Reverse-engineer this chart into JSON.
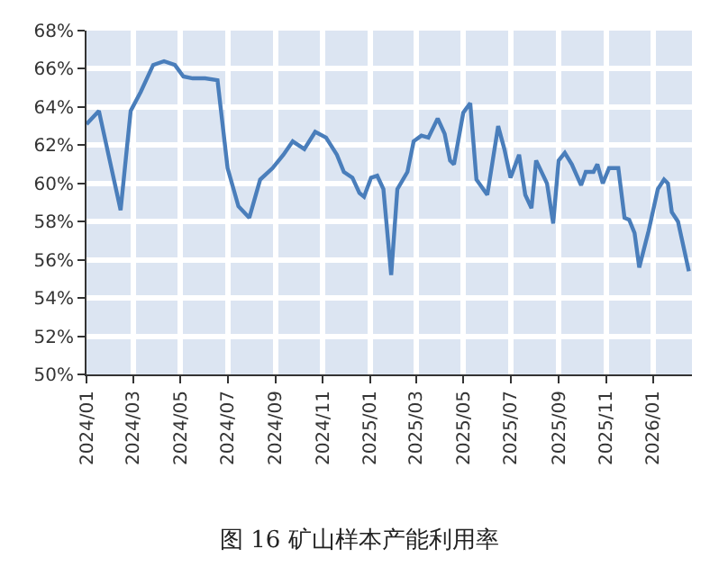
{
  "chart_data": {
    "type": "line",
    "title": "图 16 矿山样本产能利用率",
    "x": [
      "2024-01-01",
      "2024-01-17",
      "2024-02-14",
      "2024-02-27",
      "2024-03-11",
      "2024-03-27",
      "2024-04-10",
      "2024-04-24",
      "2024-05-05",
      "2024-05-17",
      "2024-06-02",
      "2024-06-18",
      "2024-07-01",
      "2024-07-15",
      "2024-07-29",
      "2024-08-12",
      "2024-08-28",
      "2024-09-11",
      "2024-09-23",
      "2024-10-08",
      "2024-10-22",
      "2024-11-05",
      "2024-11-19",
      "2024-11-28",
      "2024-12-09",
      "2024-12-18",
      "2024-12-24",
      "2025-01-02",
      "2025-01-10",
      "2025-01-18",
      "2025-01-28",
      "2025-02-05",
      "2025-02-18",
      "2025-02-26",
      "2025-03-08",
      "2025-03-17",
      "2025-03-29",
      "2025-04-07",
      "2025-04-14",
      "2025-04-19",
      "2025-05-01",
      "2025-05-10",
      "2025-05-18",
      "2025-06-01",
      "2025-06-15",
      "2025-06-23",
      "2025-07-01",
      "2025-07-12",
      "2025-07-20",
      "2025-07-28",
      "2025-08-03",
      "2025-08-17",
      "2025-08-25",
      "2025-09-01",
      "2025-09-09",
      "2025-09-18",
      "2025-09-30",
      "2025-10-06",
      "2025-10-16",
      "2025-10-21",
      "2025-10-28",
      "2025-11-05",
      "2025-11-17",
      "2025-11-25",
      "2025-12-01",
      "2025-12-08",
      "2025-12-14",
      "2025-12-26",
      "2026-01-07",
      "2026-01-15",
      "2026-01-20",
      "2026-01-25",
      "2026-02-02",
      "2026-02-16"
    ],
    "series": [
      {
        "color": "#4a7ebb",
        "values": [
          63.1,
          63.8,
          58.6,
          63.8,
          64.8,
          66.2,
          66.4,
          66.2,
          65.6,
          65.5,
          65.5,
          65.4,
          60.8,
          58.8,
          58.2,
          60.2,
          60.8,
          61.5,
          62.2,
          61.8,
          62.7,
          62.4,
          61.5,
          60.6,
          60.3,
          59.5,
          59.3,
          60.3,
          60.4,
          59.7,
          55.2,
          59.7,
          60.6,
          62.2,
          62.5,
          62.4,
          63.4,
          62.6,
          61.2,
          61.0,
          63.7,
          64.2,
          60.2,
          59.4,
          63.0,
          61.8,
          60.3,
          61.5,
          59.4,
          58.7,
          61.2,
          60.0,
          57.9,
          61.2,
          61.6,
          61.0,
          59.9,
          60.6,
          60.6,
          61.0,
          60.0,
          60.8,
          60.8,
          58.2,
          58.1,
          57.4,
          55.6,
          57.5,
          59.7,
          60.2,
          60.0,
          58.5,
          58.0,
          55.4
        ]
      }
    ],
    "xlim": [
      "2024-01-01",
      "2026-02-20"
    ],
    "xticks": [
      {
        "value": "2024-01-01",
        "label": "2024/01"
      },
      {
        "value": "2024-03-01",
        "label": "2024/03"
      },
      {
        "value": "2024-05-01",
        "label": "2024/05"
      },
      {
        "value": "2024-07-01",
        "label": "2024/07"
      },
      {
        "value": "2024-09-01",
        "label": "2024/09"
      },
      {
        "value": "2024-11-01",
        "label": "2024/11"
      },
      {
        "value": "2025-01-01",
        "label": "2025/01"
      },
      {
        "value": "2025-03-01",
        "label": "2025/03"
      },
      {
        "value": "2025-05-01",
        "label": "2025/05"
      },
      {
        "value": "2025-07-01",
        "label": "2025/07"
      },
      {
        "value": "2025-09-01",
        "label": "2025/09"
      },
      {
        "value": "2025-11-01",
        "label": "2025/11"
      },
      {
        "value": "2026-01-01",
        "label": "2026/01"
      }
    ],
    "ylim": [
      50,
      68
    ],
    "yticks": [
      {
        "value": 50,
        "label": "50%"
      },
      {
        "value": 52,
        "label": "52%"
      },
      {
        "value": 54,
        "label": "54%"
      },
      {
        "value": 56,
        "label": "56%"
      },
      {
        "value": 58,
        "label": "58%"
      },
      {
        "value": 60,
        "label": "60%"
      },
      {
        "value": 62,
        "label": "62%"
      },
      {
        "value": 64,
        "label": "64%"
      },
      {
        "value": 66,
        "label": "66%"
      },
      {
        "value": 68,
        "label": "68%"
      }
    ],
    "grid": true,
    "marker": "none",
    "line_style": "solid"
  }
}
